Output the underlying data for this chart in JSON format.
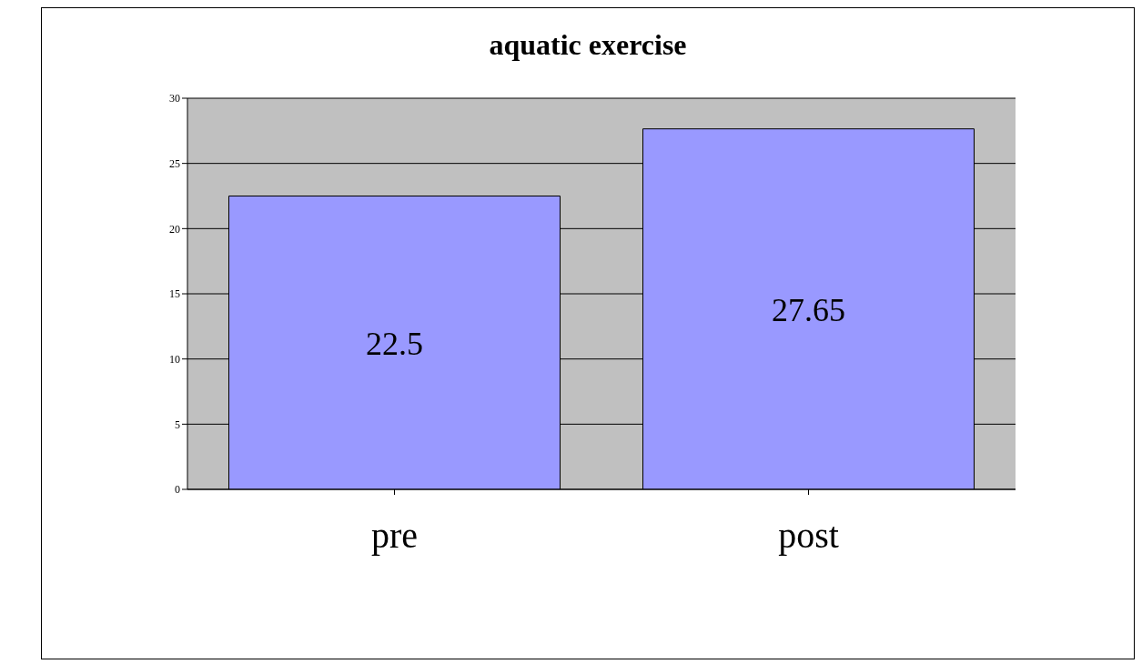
{
  "chart_data": {
    "type": "bar",
    "title": "aquatic exercise",
    "categories": [
      "pre",
      "post"
    ],
    "values": [
      22.5,
      27.65
    ],
    "color": "#9999ff",
    "ylim": [
      0,
      30
    ],
    "yticks": [
      0,
      5,
      10,
      15,
      20,
      25,
      30
    ],
    "grid": "y",
    "data_labels": true
  }
}
